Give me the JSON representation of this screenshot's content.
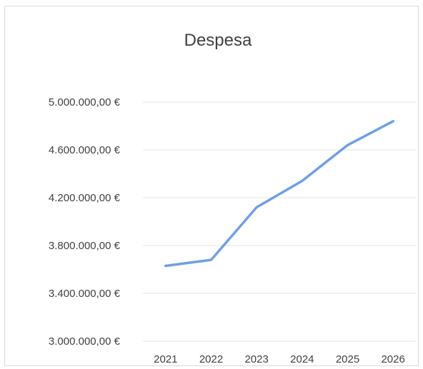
{
  "chart_data": {
    "type": "line",
    "title": "Despesa",
    "xlabel": "",
    "ylabel": "",
    "categories": [
      "2021",
      "2022",
      "2023",
      "2024",
      "2025",
      "2026"
    ],
    "series": [
      {
        "values": [
          3630000,
          3680000,
          4120000,
          4340000,
          4640000,
          4840000
        ],
        "color": "#6fa0e6"
      }
    ],
    "ylim": [
      3000000,
      5000000
    ],
    "yticks": [
      5000000,
      4600000,
      4200000,
      3800000,
      3400000,
      3000000
    ],
    "ytick_labels": [
      "5.000.000,00 €",
      "4.600.000,00 €",
      "4.200.000,00 €",
      "3.800.000,00 €",
      "3.400.000,00 €",
      "3.000.000,00 €"
    ],
    "grid": true,
    "legend": "none"
  }
}
